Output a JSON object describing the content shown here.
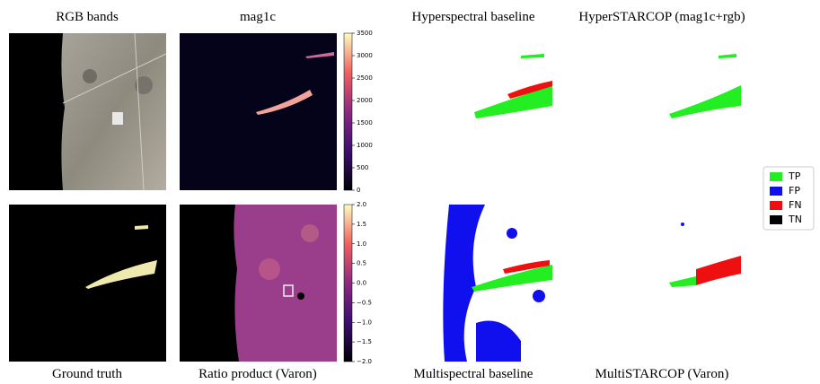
{
  "top_titles": [
    "RGB bands",
    "mag1c",
    "Hyperspectral baseline",
    "HyperSTARCOP (mag1c+rgb)"
  ],
  "bottom_titles": [
    "Ground truth",
    "Ratio product (Varon)",
    "Multispectral baseline",
    "MultiSTARCOP (Varon)"
  ],
  "colorbars": [
    {
      "lim": [
        0,
        3500
      ],
      "ticks": [
        0,
        500,
        1000,
        1500,
        2000,
        2500,
        3000,
        3500
      ]
    },
    {
      "lim": [
        -2,
        2
      ],
      "ticks": [
        {
          "value": -2,
          "label": "−2.0"
        },
        {
          "value": -1.5,
          "label": "−1.5"
        },
        {
          "value": -1,
          "label": "−1.0"
        },
        {
          "value": -0.5,
          "label": "−0.5"
        },
        {
          "value": 0,
          "label": "0.0"
        },
        {
          "value": 0.5,
          "label": "0.5"
        },
        {
          "value": 1,
          "label": "1.0"
        },
        {
          "value": 1.5,
          "label": "1.5"
        },
        {
          "value": 2,
          "label": "2.0"
        }
      ]
    }
  ],
  "legend": [
    {
      "label": "TP",
      "color": "#22ee22"
    },
    {
      "label": "FP",
      "color": "#1010ee"
    },
    {
      "label": "FN",
      "color": "#ee1010"
    },
    {
      "label": "TN",
      "color": "#000000"
    }
  ]
}
